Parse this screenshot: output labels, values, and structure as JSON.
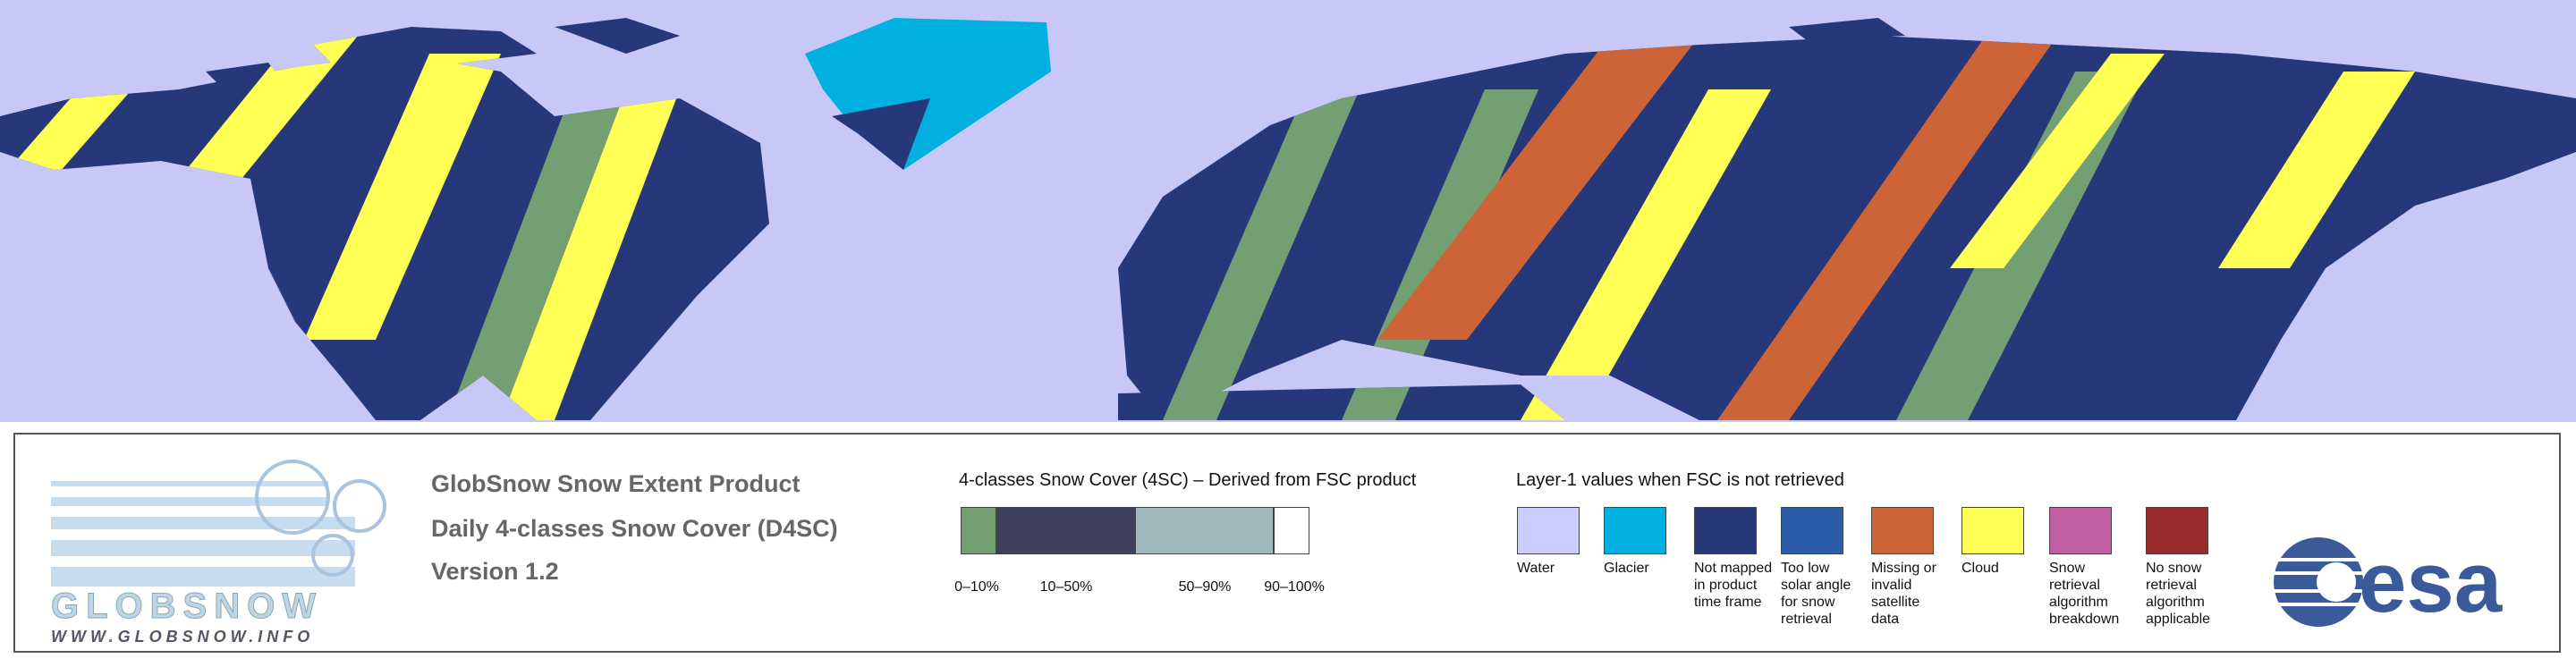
{
  "logo": {
    "name": "GLOBSNOW",
    "url": "WWW.GLOBSNOW.INFO"
  },
  "product": {
    "lines": [
      "GlobSnow Snow Extent Product",
      "Daily 4-classes Snow Cover (D4SC)",
      "Version 1.2"
    ]
  },
  "fsc_legend": {
    "title": "4-classes Snow Cover (4SC) – Derived from FSC product",
    "classes": [
      "0–10%",
      "10–50%",
      "50–90%",
      "90–100%"
    ]
  },
  "layer1_legend": {
    "title": "Layer-1 values when FSC is not retrieved",
    "items": [
      "Water",
      "Glacier",
      "Not mapped in product time frame",
      "Too low solar angle for snow retrieval",
      "Missing or invalid satellite data",
      "Cloud",
      "Snow retrieval algorithm breakdown",
      "No snow retrieval algorithm applicable"
    ]
  },
  "esa": {
    "name": "esa"
  }
}
